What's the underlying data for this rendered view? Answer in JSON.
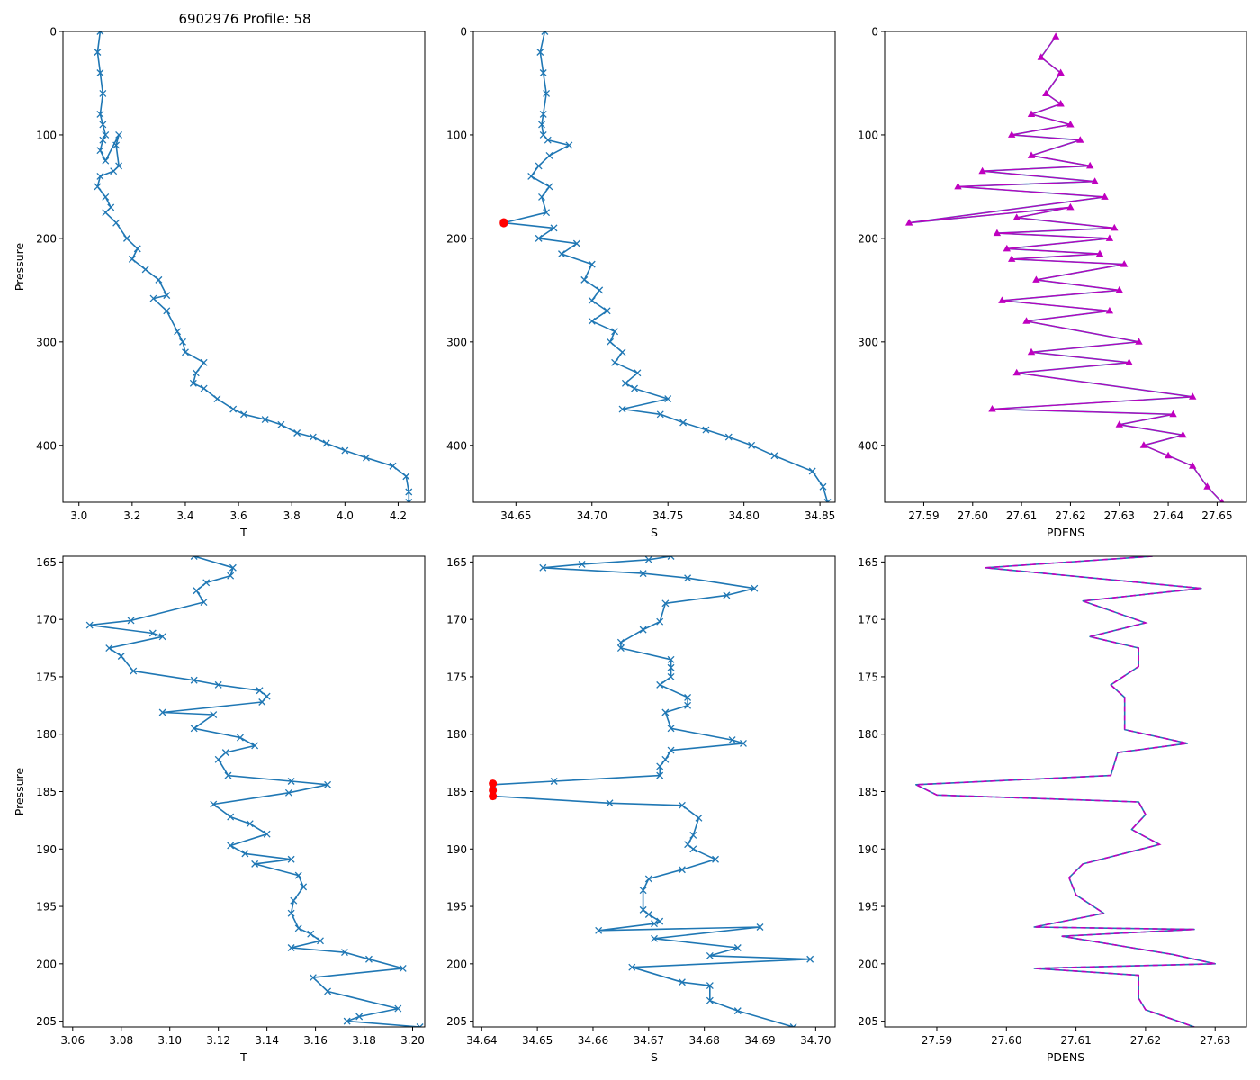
{
  "figure_title": "6902976 Profile: 58",
  "colors": {
    "line": "#1f77b4",
    "density_marker": "#bf00bf",
    "flag": "#ff0000",
    "axes": "#000000"
  },
  "chart_data": [
    {
      "id": "top-temperature",
      "type": "line",
      "xlabel": "T",
      "ylabel": "Pressure",
      "xlim": [
        2.94,
        4.3
      ],
      "ylim": [
        455,
        0
      ],
      "y_inverted": true,
      "xticks": [
        3.0,
        3.2,
        3.4,
        3.6,
        3.8,
        4.0,
        4.2
      ],
      "xtick_labels": [
        "3.0",
        "3.2",
        "3.4",
        "3.6",
        "3.8",
        "4.0",
        "4.2"
      ],
      "yticks": [
        0,
        100,
        200,
        300,
        400
      ],
      "ytick_labels": [
        "0",
        "100",
        "200",
        "300",
        "400"
      ],
      "marker": "x",
      "series": [
        {
          "name": "T",
          "style": "line-x",
          "x": [
            3.08,
            3.07,
            3.08,
            3.09,
            3.08,
            3.09,
            3.1,
            3.09,
            3.08,
            3.1,
            3.15,
            3.14,
            3.15,
            3.13,
            3.08,
            3.07,
            3.1,
            3.12,
            3.1,
            3.14,
            3.18,
            3.22,
            3.2,
            3.25,
            3.3,
            3.33,
            3.28,
            3.33,
            3.37,
            3.39,
            3.4,
            3.47,
            3.44,
            3.43,
            3.47,
            3.52,
            3.58,
            3.62,
            3.7,
            3.76,
            3.82,
            3.88,
            3.93,
            4.0,
            4.08,
            4.18,
            4.23,
            4.24,
            4.24
          ],
          "y": [
            0,
            20,
            40,
            60,
            80,
            90,
            100,
            105,
            115,
            125,
            100,
            110,
            130,
            135,
            140,
            150,
            160,
            170,
            175,
            185,
            200,
            210,
            220,
            230,
            240,
            255,
            258,
            270,
            290,
            300,
            310,
            320,
            330,
            340,
            345,
            355,
            365,
            370,
            375,
            380,
            388,
            392,
            398,
            405,
            412,
            420,
            430,
            445,
            455
          ]
        }
      ]
    },
    {
      "id": "top-salinity",
      "type": "line",
      "xlabel": "S",
      "ylabel": "",
      "xlim": [
        34.622,
        34.86
      ],
      "ylim": [
        455,
        0
      ],
      "y_inverted": true,
      "xticks": [
        34.65,
        34.7,
        34.75,
        34.8,
        34.85
      ],
      "xtick_labels": [
        "34.65",
        "34.70",
        "34.75",
        "34.80",
        "34.85"
      ],
      "yticks": [
        0,
        100,
        200,
        300,
        400
      ],
      "ytick_labels": [
        "0",
        "100",
        "200",
        "300",
        "400"
      ],
      "marker": "x",
      "series": [
        {
          "name": "S",
          "style": "line-x",
          "x": [
            34.669,
            34.666,
            34.668,
            34.67,
            34.668,
            34.667,
            34.668,
            34.671,
            34.685,
            34.672,
            34.665,
            34.66,
            34.672,
            34.667,
            34.67,
            34.642,
            34.675,
            34.665,
            34.69,
            34.68,
            34.7,
            34.695,
            34.705,
            34.7,
            34.71,
            34.7,
            34.715,
            34.712,
            34.72,
            34.715,
            34.73,
            34.722,
            34.728,
            34.75,
            34.72,
            34.745,
            34.76,
            34.775,
            34.79,
            34.805,
            34.82,
            34.845,
            34.852,
            34.855
          ],
          "y": [
            0,
            20,
            40,
            60,
            80,
            90,
            100,
            105,
            110,
            120,
            130,
            140,
            150,
            160,
            175,
            185,
            190,
            200,
            205,
            215,
            225,
            240,
            250,
            260,
            270,
            280,
            290,
            300,
            310,
            320,
            330,
            340,
            345,
            355,
            365,
            370,
            378,
            385,
            392,
            400,
            410,
            425,
            440,
            455
          ]
        },
        {
          "name": "flagged",
          "style": "dots",
          "x": [
            34.642,
            34.642
          ],
          "y": [
            184.4,
            185.4
          ]
        }
      ]
    },
    {
      "id": "top-density",
      "type": "line",
      "xlabel": "PDENS",
      "ylabel": "",
      "xlim": [
        27.582,
        27.656
      ],
      "ylim": [
        455,
        0
      ],
      "y_inverted": true,
      "xticks": [
        27.59,
        27.6,
        27.61,
        27.62,
        27.63,
        27.64,
        27.65
      ],
      "xtick_labels": [
        "27.59",
        "27.60",
        "27.61",
        "27.62",
        "27.63",
        "27.64",
        "27.65"
      ],
      "yticks": [
        0,
        100,
        200,
        300,
        400
      ],
      "ytick_labels": [
        "0",
        "100",
        "200",
        "300",
        "400"
      ],
      "marker": "triangle",
      "series": [
        {
          "name": "PDENS",
          "style": "line-triangle",
          "x": [
            27.617,
            27.614,
            27.618,
            27.615,
            27.618,
            27.612,
            27.62,
            27.608,
            27.622,
            27.612,
            27.624,
            27.602,
            27.625,
            27.597,
            27.627,
            27.587,
            27.62,
            27.609,
            27.629,
            27.605,
            27.628,
            27.607,
            27.626,
            27.608,
            27.631,
            27.613,
            27.63,
            27.606,
            27.628,
            27.611,
            27.634,
            27.612,
            27.632,
            27.609,
            27.645,
            27.604,
            27.641,
            27.63,
            27.643,
            27.635,
            27.64,
            27.645,
            27.648,
            27.651
          ],
          "y": [
            5,
            25,
            40,
            60,
            70,
            80,
            90,
            100,
            105,
            120,
            130,
            135,
            145,
            150,
            160,
            185,
            170,
            180,
            190,
            195,
            200,
            210,
            215,
            220,
            225,
            240,
            250,
            260,
            270,
            280,
            300,
            310,
            320,
            330,
            353,
            365,
            370,
            380,
            390,
            400,
            410,
            420,
            440,
            455
          ]
        }
      ]
    },
    {
      "id": "bottom-temperature",
      "type": "line",
      "xlabel": "T",
      "ylabel": "Pressure",
      "xlim": [
        3.056,
        3.205
      ],
      "ylim": [
        205.5,
        164.5
      ],
      "y_inverted": true,
      "xticks": [
        3.06,
        3.08,
        3.1,
        3.12,
        3.14,
        3.16,
        3.18,
        3.2
      ],
      "xtick_labels": [
        "3.06",
        "3.08",
        "3.10",
        "3.12",
        "3.14",
        "3.16",
        "3.18",
        "3.20"
      ],
      "yticks": [
        165,
        170,
        175,
        180,
        185,
        190,
        195,
        200,
        205
      ],
      "ytick_labels": [
        "165",
        "170",
        "175",
        "180",
        "185",
        "190",
        "195",
        "200",
        "205"
      ],
      "marker": "x",
      "series": [
        {
          "name": "T",
          "style": "line-x",
          "x": [
            3.11,
            3.126,
            3.125,
            3.115,
            3.111,
            3.114,
            3.084,
            3.067,
            3.093,
            3.097,
            3.075,
            3.08,
            3.085,
            3.11,
            3.12,
            3.137,
            3.14,
            3.138,
            3.097,
            3.118,
            3.11,
            3.129,
            3.135,
            3.123,
            3.12,
            3.124,
            3.15,
            3.165,
            3.149,
            3.118,
            3.125,
            3.133,
            3.14,
            3.125,
            3.131,
            3.15,
            3.135,
            3.153,
            3.155,
            3.151,
            3.15,
            3.153,
            3.158,
            3.162,
            3.15,
            3.172,
            3.182,
            3.196,
            3.159,
            3.165,
            3.194,
            3.178,
            3.173,
            3.203
          ],
          "y": [
            164.5,
            165.5,
            166.2,
            166.8,
            167.5,
            168.5,
            170.1,
            170.5,
            171.2,
            171.5,
            172.5,
            173.2,
            174.5,
            175.3,
            175.7,
            176.2,
            176.7,
            177.2,
            178.1,
            178.3,
            179.5,
            180.3,
            181.0,
            181.6,
            182.2,
            183.6,
            184.1,
            184.4,
            185.1,
            186.1,
            187.2,
            187.8,
            188.7,
            189.7,
            190.4,
            190.9,
            191.3,
            192.3,
            193.3,
            194.5,
            195.6,
            196.9,
            197.4,
            198.0,
            198.6,
            199.0,
            199.6,
            200.4,
            201.2,
            202.4,
            203.9,
            204.6,
            205.0,
            205.5
          ]
        }
      ]
    },
    {
      "id": "bottom-salinity",
      "type": "line",
      "xlabel": "S",
      "ylabel": "",
      "xlim": [
        34.6385,
        34.7035
      ],
      "ylim": [
        205.5,
        164.5
      ],
      "y_inverted": true,
      "xticks": [
        34.64,
        34.65,
        34.66,
        34.67,
        34.68,
        34.69,
        34.7
      ],
      "xtick_labels": [
        "34.64",
        "34.65",
        "34.66",
        "34.67",
        "34.68",
        "34.69",
        "34.70"
      ],
      "yticks": [
        165,
        170,
        175,
        180,
        185,
        190,
        195,
        200,
        205
      ],
      "ytick_labels": [
        "165",
        "170",
        "175",
        "180",
        "185",
        "190",
        "195",
        "200",
        "205"
      ],
      "marker": "x",
      "series": [
        {
          "name": "S",
          "style": "line-x",
          "x": [
            34.674,
            34.67,
            34.658,
            34.651,
            34.669,
            34.677,
            34.689,
            34.684,
            34.673,
            34.672,
            34.669,
            34.665,
            34.665,
            34.674,
            34.674,
            34.674,
            34.672,
            34.677,
            34.677,
            34.673,
            34.674,
            34.685,
            34.687,
            34.674,
            34.673,
            34.672,
            34.672,
            34.653,
            34.642,
            34.642,
            34.663,
            34.676,
            34.679,
            34.678,
            34.677,
            34.678,
            34.682,
            34.676,
            34.67,
            34.669,
            34.669,
            34.67,
            34.672,
            34.671,
            34.661,
            34.69,
            34.671,
            34.686,
            34.681,
            34.699,
            34.667,
            34.676,
            34.681,
            34.681,
            34.686,
            34.696
          ],
          "y": [
            164.5,
            164.8,
            165.2,
            165.5,
            166.0,
            166.4,
            167.3,
            167.9,
            168.6,
            170.2,
            170.9,
            172.0,
            172.5,
            173.5,
            174.2,
            175.0,
            175.7,
            176.8,
            177.5,
            178.1,
            179.5,
            180.5,
            180.8,
            181.4,
            182.2,
            182.8,
            183.6,
            184.1,
            184.4,
            185.4,
            186.0,
            186.2,
            187.3,
            188.8,
            189.6,
            190.0,
            190.9,
            191.8,
            192.6,
            193.6,
            195.3,
            195.7,
            196.3,
            196.5,
            197.1,
            196.8,
            197.8,
            198.6,
            199.3,
            199.6,
            200.3,
            201.6,
            201.9,
            203.2,
            204.1,
            205.5
          ]
        },
        {
          "name": "flagged",
          "style": "dots",
          "x": [
            34.642,
            34.642,
            34.642
          ],
          "y": [
            184.3,
            184.9,
            185.4
          ]
        }
      ]
    },
    {
      "id": "bottom-density",
      "type": "line",
      "xlabel": "PDENS",
      "ylabel": "",
      "xlim": [
        27.5825,
        27.6345
      ],
      "ylim": [
        205.5,
        164.5
      ],
      "y_inverted": true,
      "xticks": [
        27.59,
        27.6,
        27.61,
        27.62,
        27.63
      ],
      "xtick_labels": [
        "27.59",
        "27.60",
        "27.61",
        "27.62",
        "27.63"
      ],
      "yticks": [
        165,
        170,
        175,
        180,
        185,
        190,
        195,
        200,
        205
      ],
      "ytick_labels": [
        "165",
        "170",
        "175",
        "180",
        "185",
        "190",
        "195",
        "200",
        "205"
      ],
      "marker": "none",
      "series": [
        {
          "name": "PDENS",
          "style": "line-dashed-overlay",
          "x": [
            27.621,
            27.597,
            27.628,
            27.611,
            27.62,
            27.612,
            27.619,
            27.619,
            27.615,
            27.617,
            27.617,
            27.626,
            27.616,
            27.615,
            27.587,
            27.59,
            27.619,
            27.62,
            27.618,
            27.622,
            27.611,
            27.609,
            27.61,
            27.614,
            27.604,
            27.627,
            27.608,
            27.624,
            27.63,
            27.604,
            27.619,
            27.619,
            27.62,
            27.627
          ],
          "y": [
            164.5,
            165.5,
            167.3,
            168.4,
            170.3,
            171.5,
            172.5,
            174.1,
            175.7,
            176.8,
            179.6,
            180.8,
            181.6,
            183.6,
            184.4,
            185.3,
            185.9,
            187.0,
            188.3,
            189.6,
            191.3,
            192.5,
            194.0,
            195.6,
            196.8,
            197.0,
            197.6,
            199.2,
            200.0,
            200.4,
            201.0,
            203.0,
            204.0,
            205.5
          ]
        }
      ]
    }
  ]
}
